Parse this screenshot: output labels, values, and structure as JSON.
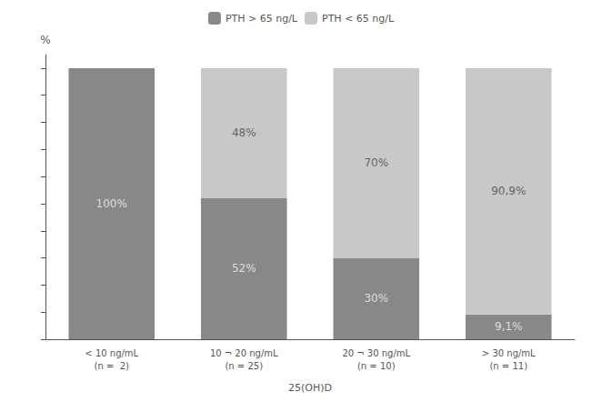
{
  "chart_data": {
    "type": "bar",
    "stacked": true,
    "data_labels": true,
    "xlabel": "25(OH)D",
    "ylabel": "%",
    "categories": [
      "< 10 ng/mL\n(n =  2)",
      "10 ¬ 20 ng/mL\n(n = 25)",
      "20 ¬ 30 ng/mL\n(n = 10)",
      "> 30 ng/mL\n(n = 11)"
    ],
    "series": [
      {
        "name": "PTH > 65 ng/L",
        "color": "#888888",
        "values": [
          100,
          52,
          30,
          9.1
        ],
        "value_labels": [
          "100%",
          "52%",
          "30%",
          "9,1%"
        ]
      },
      {
        "name": "PTH < 65 ng/L",
        "color": "#c8c8c8",
        "values": [
          0,
          48,
          70,
          90.9
        ],
        "value_labels": [
          null,
          "48%",
          "70%",
          "90,9%"
        ]
      }
    ],
    "ylim": [
      0,
      105
    ],
    "yticks": [
      0,
      10,
      20,
      30,
      40,
      50,
      60,
      70,
      80,
      90,
      100
    ],
    "tick_labels": "x",
    "grid": false,
    "legend": "top"
  }
}
